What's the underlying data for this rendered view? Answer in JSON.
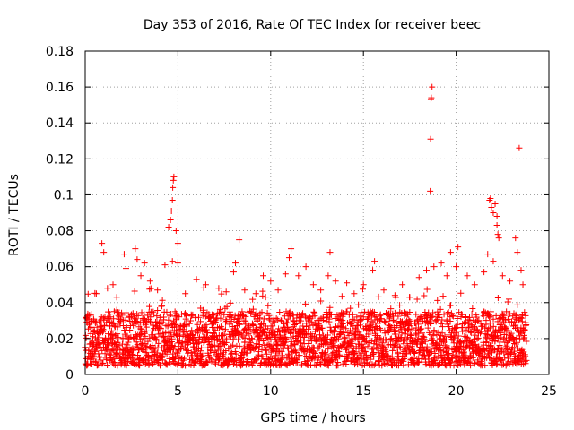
{
  "chart_data": {
    "type": "scatter",
    "title": "Day 353 of 2016, Rate Of TEC Index for receiver beec",
    "xlabel": "GPS time / hours",
    "ylabel": "ROTI / TECUs",
    "xlim": [
      0,
      25
    ],
    "ylim": [
      0,
      0.18
    ],
    "x_ticks": [
      "0",
      "5",
      "10",
      "15",
      "20",
      "25"
    ],
    "y_ticks": [
      "0",
      "0.02",
      "0.04",
      "0.06",
      "0.08",
      "0.1",
      "0.12",
      "0.14",
      "0.16",
      "0.18"
    ],
    "grid": true,
    "marker": "+",
    "color": "#ff0000",
    "dense_band": {
      "x_range": [
        0,
        23.8
      ],
      "baseline_range": [
        0.005,
        0.035
      ],
      "note": "thousands of points densely filling roughly 0.005-0.035 ROTI across the day"
    },
    "series": [
      {
        "name": "ROTI",
        "points": [
          [
            0.1,
            0.031
          ],
          [
            0.3,
            0.026
          ],
          [
            0.6,
            0.045
          ],
          [
            0.9,
            0.073
          ],
          [
            1.0,
            0.068
          ],
          [
            1.2,
            0.048
          ],
          [
            1.5,
            0.05
          ],
          [
            1.7,
            0.043
          ],
          [
            2.1,
            0.067
          ],
          [
            2.2,
            0.059
          ],
          [
            2.7,
            0.07
          ],
          [
            2.8,
            0.064
          ],
          [
            3.0,
            0.055
          ],
          [
            3.2,
            0.062
          ],
          [
            3.5,
            0.052
          ],
          [
            3.9,
            0.047
          ],
          [
            4.3,
            0.061
          ],
          [
            4.5,
            0.082
          ],
          [
            4.6,
            0.086
          ],
          [
            4.65,
            0.091
          ],
          [
            4.7,
            0.097
          ],
          [
            4.72,
            0.104
          ],
          [
            4.75,
            0.108
          ],
          [
            4.78,
            0.11
          ],
          [
            4.7,
            0.063
          ],
          [
            4.9,
            0.08
          ],
          [
            5.0,
            0.073
          ],
          [
            5.0,
            0.062
          ],
          [
            5.4,
            0.045
          ],
          [
            6.0,
            0.053
          ],
          [
            6.5,
            0.05
          ],
          [
            7.2,
            0.048
          ],
          [
            7.6,
            0.046
          ],
          [
            8.0,
            0.057
          ],
          [
            8.1,
            0.062
          ],
          [
            8.3,
            0.075
          ],
          [
            8.6,
            0.047
          ],
          [
            9.2,
            0.045
          ],
          [
            9.6,
            0.055
          ],
          [
            10.0,
            0.052
          ],
          [
            10.4,
            0.047
          ],
          [
            10.8,
            0.056
          ],
          [
            11.0,
            0.065
          ],
          [
            11.1,
            0.07
          ],
          [
            11.5,
            0.055
          ],
          [
            11.9,
            0.06
          ],
          [
            12.3,
            0.05
          ],
          [
            12.7,
            0.047
          ],
          [
            13.1,
            0.055
          ],
          [
            13.2,
            0.068
          ],
          [
            13.5,
            0.052
          ],
          [
            14.1,
            0.051
          ],
          [
            14.5,
            0.045
          ],
          [
            15.0,
            0.05
          ],
          [
            15.5,
            0.058
          ],
          [
            15.6,
            0.063
          ],
          [
            16.1,
            0.047
          ],
          [
            16.7,
            0.044
          ],
          [
            17.1,
            0.05
          ],
          [
            17.5,
            0.043
          ],
          [
            18.0,
            0.054
          ],
          [
            18.4,
            0.058
          ],
          [
            18.6,
            0.102
          ],
          [
            18.62,
            0.131
          ],
          [
            18.64,
            0.153
          ],
          [
            18.66,
            0.154
          ],
          [
            18.7,
            0.16
          ],
          [
            18.8,
            0.06
          ],
          [
            19.2,
            0.062
          ],
          [
            19.5,
            0.055
          ],
          [
            19.7,
            0.068
          ],
          [
            20.0,
            0.06
          ],
          [
            20.1,
            0.071
          ],
          [
            20.6,
            0.055
          ],
          [
            21.0,
            0.05
          ],
          [
            21.5,
            0.057
          ],
          [
            21.7,
            0.067
          ],
          [
            21.8,
            0.097
          ],
          [
            21.85,
            0.098
          ],
          [
            21.9,
            0.093
          ],
          [
            22.0,
            0.09
          ],
          [
            22.1,
            0.095
          ],
          [
            22.2,
            0.088
          ],
          [
            22.2,
            0.083
          ],
          [
            22.25,
            0.078
          ],
          [
            22.3,
            0.076
          ],
          [
            22.0,
            0.063
          ],
          [
            22.5,
            0.055
          ],
          [
            22.9,
            0.052
          ],
          [
            23.2,
            0.076
          ],
          [
            23.3,
            0.068
          ],
          [
            23.4,
            0.126
          ],
          [
            23.5,
            0.058
          ],
          [
            23.6,
            0.05
          ]
        ]
      }
    ]
  }
}
